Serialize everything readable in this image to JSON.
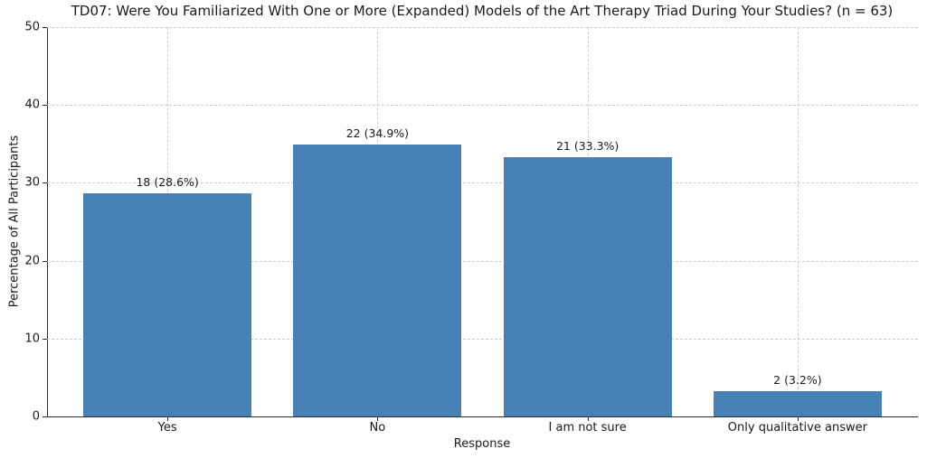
{
  "chart_data": {
    "type": "bar",
    "title": "TD07: Were You Familiarized With One or More (Expanded) Models of the Art Therapy Triad During Your Studies? (n = 63)",
    "xlabel": "Response",
    "ylabel": "Percentage of All Participants",
    "categories": [
      "Yes",
      "No",
      "I am not sure",
      "Only qualitative answer"
    ],
    "values": [
      28.6,
      34.9,
      33.3,
      3.2
    ],
    "counts": [
      18,
      22,
      21,
      2
    ],
    "bar_labels": [
      "18 (28.6%)",
      "22 (34.9%)",
      "21 (33.3%)",
      "2 (3.2%)"
    ],
    "ylim": [
      0,
      50
    ],
    "yticks": [
      0,
      10,
      20,
      30,
      40,
      50
    ],
    "bar_color": "#4682B4",
    "grid_style": "dashed",
    "grid_color": "#cdcdcd",
    "legend": "none"
  }
}
